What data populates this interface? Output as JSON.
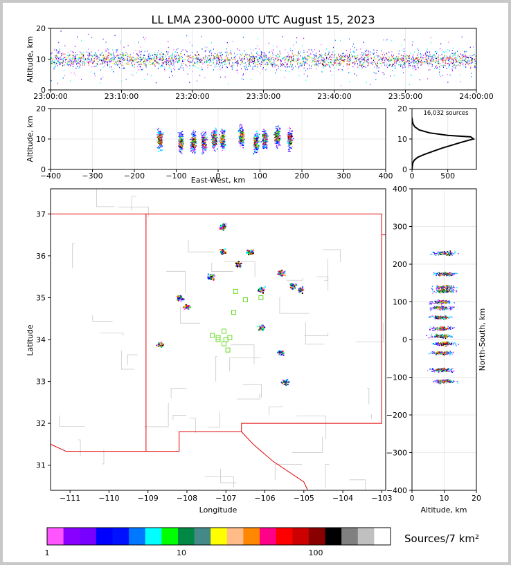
{
  "title": "LL LMA 2300-0000 UTC August 15, 2023",
  "time_panel": {
    "ylabel": "Altitude, km",
    "x_ticks": [
      "23:00:00",
      "23:10:00",
      "23:20:00",
      "23:30:00",
      "23:40:00",
      "23:50:00",
      "24:00:00"
    ],
    "y_ticks": [
      "0",
      "10",
      "20"
    ]
  },
  "ew_panel": {
    "ylabel": "Altitude, km",
    "xlabel": "East-West, km",
    "x_ticks": [
      "−400",
      "−300",
      "−200",
      "−100",
      "0",
      "100",
      "200",
      "300",
      "400"
    ],
    "y_ticks": [
      "0",
      "10",
      "20"
    ]
  },
  "hist_panel": {
    "annotation": "16,032 sources",
    "x_ticks": [
      "0",
      "500"
    ],
    "y_ticks": [
      "0",
      "10",
      "20"
    ]
  },
  "map_panel": {
    "xlabel": "Longitude",
    "ylabel": "Latitude",
    "x_ticks": [
      "−111",
      "−110",
      "−109",
      "−108",
      "−107",
      "−106",
      "−105",
      "−104",
      "−103"
    ],
    "y_ticks": [
      "31",
      "32",
      "33",
      "34",
      "35",
      "36",
      "37"
    ]
  },
  "ns_panel": {
    "xlabel": "Altitude, km",
    "ylabel": "North-South, km",
    "x_ticks": [
      "0",
      "10",
      "20"
    ],
    "y_ticks": [
      "−400",
      "−300",
      "−200",
      "−100",
      "0",
      "100",
      "200",
      "300",
      "400"
    ]
  },
  "colorbar": {
    "label": "Sources/7 km²",
    "tick_labels": [
      "1",
      "10",
      "100"
    ],
    "colors": [
      "#ff55ff",
      "#8800ff",
      "#7700ff",
      "#0000ff",
      "#0011ff",
      "#0077ff",
      "#00ffff",
      "#00ff00",
      "#008844",
      "#448888",
      "#ffff00",
      "#ffbb88",
      "#ff8800",
      "#ff0088",
      "#ff0000",
      "#cc0000",
      "#880000",
      "#000000",
      "#808080",
      "#c0c0c0",
      "#ffffff"
    ]
  },
  "chart_data": [
    {
      "type": "heatmap",
      "name": "time-height",
      "x_range": [
        "23:00:00",
        "24:00:00"
      ],
      "ylim": [
        0,
        20
      ],
      "ylabel": "Altitude, km",
      "altitude_band_km": [
        6,
        14
      ],
      "dense_core_km": 10
    },
    {
      "type": "heatmap",
      "name": "east-west vs altitude",
      "xlim": [
        -400,
        400
      ],
      "ylim": [
        0,
        20
      ],
      "xlabel": "East-West, km",
      "ylabel": "Altitude, km",
      "clusters": [
        {
          "x": -140,
          "alt": 10
        },
        {
          "x": -90,
          "alt": 9
        },
        {
          "x": -60,
          "alt": 9
        },
        {
          "x": -35,
          "alt": 9
        },
        {
          "x": -10,
          "alt": 10
        },
        {
          "x": 10,
          "alt": 10
        },
        {
          "x": 55,
          "alt": 11
        },
        {
          "x": 90,
          "alt": 9
        },
        {
          "x": 110,
          "alt": 10
        },
        {
          "x": 140,
          "alt": 11
        },
        {
          "x": 170,
          "alt": 10
        }
      ]
    },
    {
      "type": "line",
      "name": "altitude histogram",
      "annotation": "16,032 sources",
      "xlim": [
        0,
        900
      ],
      "ylim": [
        0,
        20
      ],
      "x": [
        0,
        10,
        30,
        80,
        180,
        300,
        420,
        560,
        700,
        860,
        820,
        500,
        250,
        100,
        40,
        15,
        5,
        0
      ],
      "y": [
        0,
        2,
        3,
        4,
        5,
        6,
        7,
        8,
        9,
        10,
        10.7,
        11.2,
        12,
        13,
        14,
        15,
        16,
        17
      ]
    },
    {
      "type": "scatter",
      "name": "plan view",
      "xlim": [
        -111.5,
        -102.9
      ],
      "ylim": [
        30.4,
        37.6
      ],
      "xlabel": "Longitude",
      "ylabel": "Latitude",
      "clusters": [
        {
          "lon": -108.7,
          "lat": 33.9
        },
        {
          "lon": -108.2,
          "lat": 35.0
        },
        {
          "lon": -108.0,
          "lat": 34.8
        },
        {
          "lon": -107.4,
          "lat": 35.5
        },
        {
          "lon": -107.1,
          "lat": 36.1
        },
        {
          "lon": -106.7,
          "lat": 35.8
        },
        {
          "lon": -106.1,
          "lat": 35.2
        },
        {
          "lon": -106.1,
          "lat": 34.3
        },
        {
          "lon": -105.6,
          "lat": 35.6
        },
        {
          "lon": -105.3,
          "lat": 35.3
        },
        {
          "lon": -105.1,
          "lat": 35.2
        },
        {
          "lon": -105.6,
          "lat": 33.7
        },
        {
          "lon": -105.5,
          "lat": 33.0
        },
        {
          "lon": -107.1,
          "lat": 36.7
        },
        {
          "lon": -106.4,
          "lat": 36.1
        }
      ],
      "stations": [
        {
          "lon": -107.2,
          "lat": 34.05
        },
        {
          "lon": -107.35,
          "lat": 34.1
        },
        {
          "lon": -107.2,
          "lat": 34.0
        },
        {
          "lon": -107.05,
          "lat": 34.2
        },
        {
          "lon": -107.0,
          "lat": 34.0
        },
        {
          "lon": -106.9,
          "lat": 34.05
        },
        {
          "lon": -107.05,
          "lat": 33.9
        },
        {
          "lon": -106.95,
          "lat": 33.75
        },
        {
          "lon": -106.8,
          "lat": 34.65
        },
        {
          "lon": -106.75,
          "lat": 35.15
        },
        {
          "lon": -106.5,
          "lat": 34.95
        },
        {
          "lon": -106.1,
          "lat": 35.0
        }
      ]
    },
    {
      "type": "heatmap",
      "name": "altitude vs north-south",
      "xlim": [
        0,
        20
      ],
      "ylim": [
        -400,
        400
      ],
      "xlabel": "Altitude, km",
      "ylabel": "North-South, km",
      "clusters": [
        {
          "alt": 10,
          "ns": 230
        },
        {
          "alt": 10,
          "ns": 175
        },
        {
          "alt": 10,
          "ns": 140
        },
        {
          "alt": 10,
          "ns": 130
        },
        {
          "alt": 9,
          "ns": 100
        },
        {
          "alt": 9,
          "ns": 85
        },
        {
          "alt": 9,
          "ns": 60
        },
        {
          "alt": 9,
          "ns": 30
        },
        {
          "alt": 9,
          "ns": 10
        },
        {
          "alt": 10,
          "ns": -10
        },
        {
          "alt": 9,
          "ns": -35
        },
        {
          "alt": 9,
          "ns": -80
        },
        {
          "alt": 10,
          "ns": -110
        }
      ]
    }
  ]
}
